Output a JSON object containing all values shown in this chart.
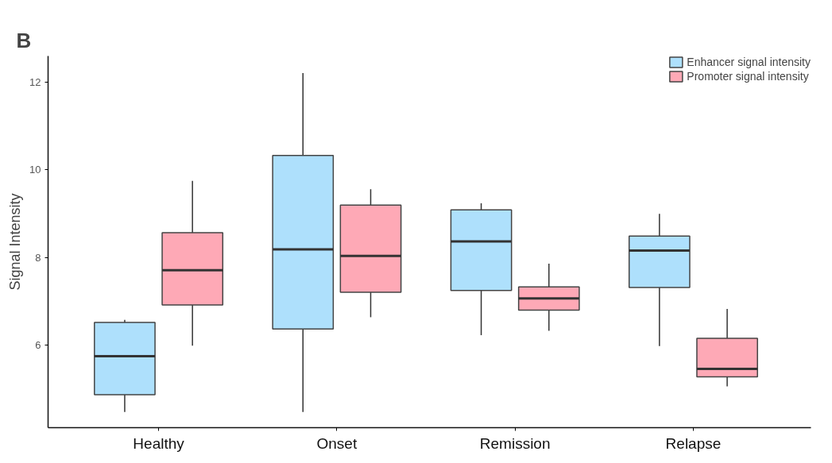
{
  "chart_data": {
    "type": "box",
    "title": "B",
    "ylabel": "Signal Intensity",
    "categories": [
      "Healthy",
      "Onset",
      "Remission",
      "Relapse"
    ],
    "series": [
      {
        "name": "Enhancer signal intensity",
        "color": "#aee0fc",
        "boxes": [
          {
            "low": 4.48,
            "q1": 4.87,
            "median": 5.75,
            "q3": 6.52,
            "high": 6.58
          },
          {
            "low": 4.48,
            "q1": 6.37,
            "median": 8.19,
            "q3": 10.33,
            "high": 12.21
          },
          {
            "low": 6.23,
            "q1": 7.25,
            "median": 8.37,
            "q3": 9.09,
            "high": 9.24
          },
          {
            "low": 5.98,
            "q1": 7.32,
            "median": 8.16,
            "q3": 8.49,
            "high": 9.0
          }
        ]
      },
      {
        "name": "Promoter signal intensity",
        "color": "#fea9b6",
        "boxes": [
          {
            "low": 5.99,
            "q1": 6.92,
            "median": 7.71,
            "q3": 8.57,
            "high": 9.75
          },
          {
            "low": 6.64,
            "q1": 7.21,
            "median": 8.04,
            "q3": 9.2,
            "high": 9.56
          },
          {
            "low": 6.33,
            "q1": 6.8,
            "median": 7.07,
            "q3": 7.33,
            "high": 7.86
          },
          {
            "low": 5.06,
            "q1": 5.28,
            "median": 5.46,
            "q3": 6.16,
            "high": 6.83
          }
        ]
      }
    ],
    "ylim": [
      4.12,
      12.6
    ],
    "yticks": [
      6,
      8,
      10,
      12
    ],
    "grid": false,
    "legend": "top right"
  }
}
